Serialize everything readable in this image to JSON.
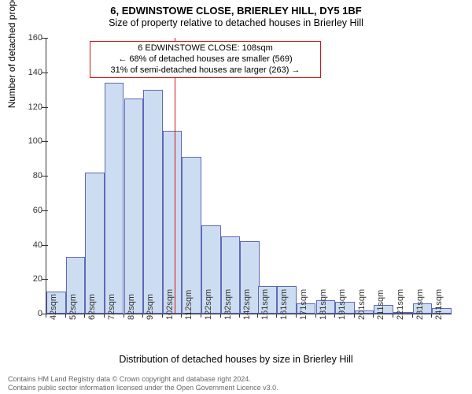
{
  "title": "6, EDWINSTOWE CLOSE, BRIERLEY HILL, DY5 1BF",
  "subtitle": "Size of property relative to detached houses in Brierley Hill",
  "ylabel": "Number of detached properties",
  "xlabel": "Distribution of detached houses by size in Brierley Hill",
  "chart": {
    "type": "histogram",
    "ylim": [
      0,
      160
    ],
    "ytick_step": 20,
    "bar_fill": "#cdddf1",
    "bar_stroke": "#6068b8",
    "marker_color": "#d01515",
    "marker_value": 108,
    "xmin": 42,
    "xmax": 251,
    "xtick_step": 10,
    "xtick_suffix": "sqm",
    "bars": [
      {
        "x": 42,
        "v": 13
      },
      {
        "x": 52,
        "v": 33
      },
      {
        "x": 62,
        "v": 82
      },
      {
        "x": 72,
        "v": 134
      },
      {
        "x": 82,
        "v": 125
      },
      {
        "x": 92,
        "v": 130
      },
      {
        "x": 102,
        "v": 106
      },
      {
        "x": 112,
        "v": 91
      },
      {
        "x": 122,
        "v": 51
      },
      {
        "x": 132,
        "v": 45
      },
      {
        "x": 142,
        "v": 42
      },
      {
        "x": 151,
        "v": 16
      },
      {
        "x": 161,
        "v": 16
      },
      {
        "x": 171,
        "v": 6
      },
      {
        "x": 181,
        "v": 8
      },
      {
        "x": 191,
        "v": 7
      },
      {
        "x": 201,
        "v": 2
      },
      {
        "x": 211,
        "v": 5
      },
      {
        "x": 221,
        "v": 1
      },
      {
        "x": 231,
        "v": 6
      },
      {
        "x": 241,
        "v": 3
      }
    ]
  },
  "annotation": {
    "line1": "6 EDWINSTOWE CLOSE: 108sqm",
    "line2": "← 68% of detached houses are smaller (569)",
    "line3": "31% of semi-detached houses are larger (263) →"
  },
  "footer": {
    "line1": "Contains HM Land Registry data © Crown copyright and database right 2024.",
    "line2": "Contains public sector information licensed under the Open Government Licence v3.0."
  }
}
